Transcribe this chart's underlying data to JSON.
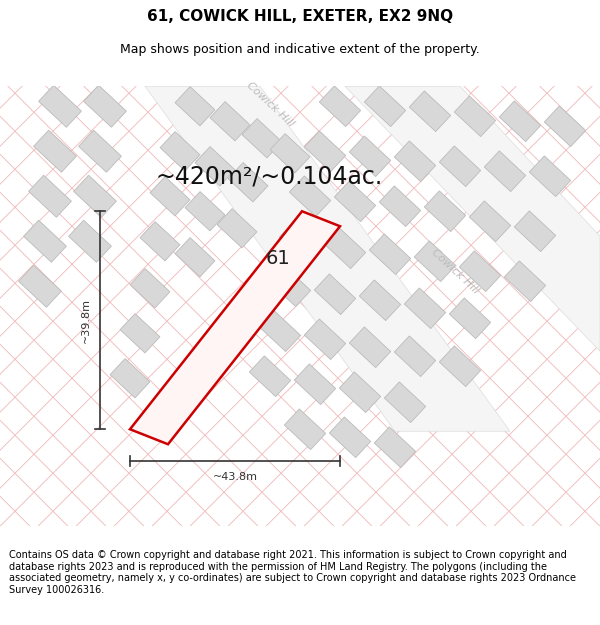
{
  "title": "61, COWICK HILL, EXETER, EX2 9NQ",
  "subtitle": "Map shows position and indicative extent of the property.",
  "area_text": "~420m²/~0.104ac.",
  "label_61": "61",
  "width_label": "~43.8m",
  "height_label": "~39.8m",
  "road_label_top": "Cowick Hill",
  "road_label_bottom": "Cowick Hill",
  "footer": "Contains OS data © Crown copyright and database right 2021. This information is subject to Crown copyright and database rights 2023 and is reproduced with the permission of HM Land Registry. The polygons (including the associated geometry, namely x, y co-ordinates) are subject to Crown copyright and database rights 2023 Ordnance Survey 100026316.",
  "bg_color": "#ffffff",
  "plot_outline_color": "#cc0000",
  "building_fill": "#d8d8d8",
  "building_outline": "#bbbbbb",
  "hatch_line_color": "#f0b8b8",
  "road_fill": "#f0f0f0",
  "road_edge": "#dddddd",
  "dim_color": "#333333",
  "title_fontsize": 11,
  "subtitle_fontsize": 9,
  "area_fontsize": 17,
  "label_fontsize": 14,
  "road_label_fontsize": 8,
  "footer_fontsize": 7
}
